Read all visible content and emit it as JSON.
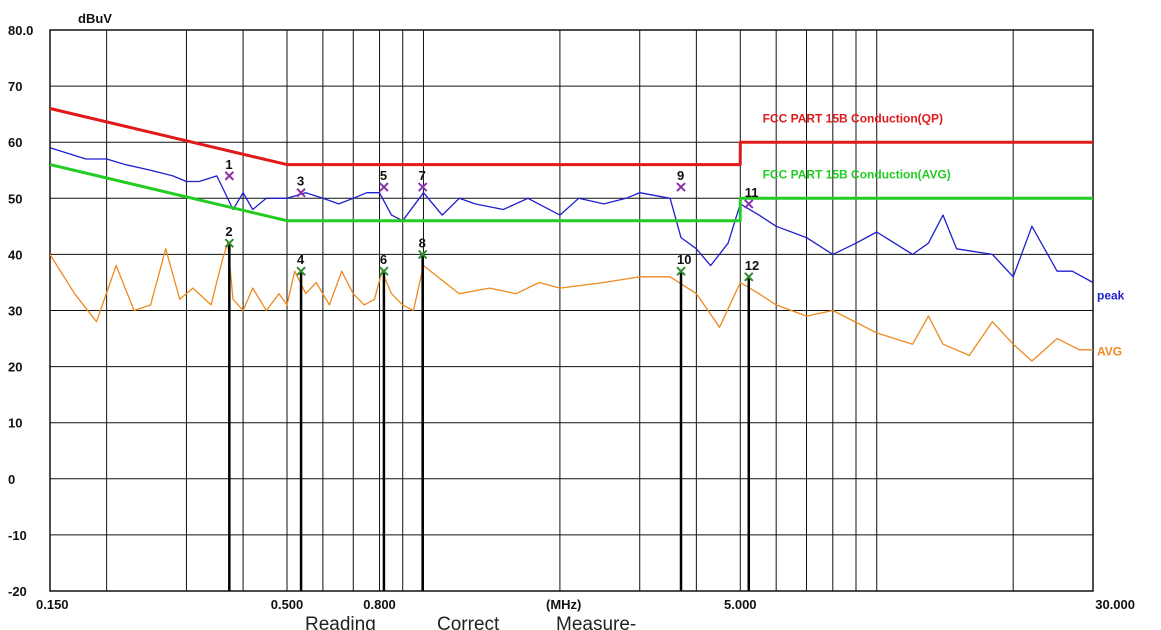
{
  "chart_data": {
    "type": "line",
    "y_unit": "dBuV",
    "x_unit": "(MHz)",
    "x_scale": "log",
    "xlim": [
      0.15,
      30
    ],
    "ylim": [
      -20,
      80
    ],
    "y_ticks": [
      "80.0",
      "70",
      "60",
      "50",
      "40",
      "30",
      "20",
      "10",
      "0",
      "-10",
      "-20"
    ],
    "x_ticks": [
      "0.150",
      "0.500",
      "0.800",
      "5.000",
      "30.000"
    ],
    "grid": true,
    "series": [
      {
        "name": "peak",
        "color": "#1f1fd0",
        "x": [
          0.15,
          0.18,
          0.2,
          0.22,
          0.25,
          0.28,
          0.3,
          0.32,
          0.35,
          0.36,
          0.38,
          0.4,
          0.42,
          0.45,
          0.48,
          0.5,
          0.55,
          0.6,
          0.65,
          0.7,
          0.75,
          0.8,
          0.85,
          0.9,
          1.0,
          1.1,
          1.2,
          1.3,
          1.5,
          1.7,
          2.0,
          2.2,
          2.5,
          2.8,
          3.0,
          3.5,
          3.7,
          4.0,
          4.3,
          4.7,
          5.0,
          5.5,
          6.0,
          7.0,
          8.0,
          9.0,
          10.0,
          12.0,
          13.0,
          14.0,
          15.0,
          18.0,
          20.0,
          22.0,
          25.0,
          27.0,
          30.0
        ],
        "y": [
          59,
          57,
          57,
          56,
          55,
          54,
          53,
          53,
          54,
          52,
          48,
          51,
          48,
          50,
          50,
          50,
          51,
          50,
          49,
          50,
          51,
          51,
          47,
          46,
          51,
          47,
          50,
          49,
          48,
          50,
          47,
          50,
          49,
          50,
          51,
          50,
          43,
          41,
          38,
          42,
          49,
          47,
          45,
          43,
          40,
          42,
          44,
          40,
          42,
          47,
          41,
          40,
          36,
          45,
          37,
          37,
          35
        ]
      },
      {
        "name": "AVG",
        "color": "#ee8a1f",
        "x": [
          0.15,
          0.17,
          0.19,
          0.21,
          0.23,
          0.25,
          0.27,
          0.29,
          0.31,
          0.34,
          0.36,
          0.37,
          0.38,
          0.4,
          0.42,
          0.45,
          0.48,
          0.5,
          0.52,
          0.55,
          0.58,
          0.62,
          0.66,
          0.7,
          0.74,
          0.78,
          0.81,
          0.85,
          0.9,
          0.95,
          1.0,
          1.2,
          1.4,
          1.6,
          1.8,
          2.0,
          2.5,
          3.0,
          3.5,
          4.0,
          4.5,
          5.0,
          5.5,
          6.0,
          7.0,
          8.0,
          10.0,
          12.0,
          13.0,
          14.0,
          16.0,
          18.0,
          20.0,
          22.0,
          25.0,
          28.0,
          30.0
        ],
        "y": [
          40,
          33,
          28,
          38,
          30,
          31,
          41,
          32,
          34,
          31,
          39,
          42,
          32,
          30,
          34,
          30,
          33,
          31,
          37,
          33,
          35,
          31,
          37,
          33,
          31,
          32,
          37,
          33,
          31,
          30,
          38,
          33,
          34,
          33,
          35,
          34,
          35,
          36,
          36,
          33,
          27,
          35,
          33,
          31,
          29,
          30,
          26,
          24,
          29,
          24,
          22,
          28,
          24,
          21,
          25,
          23,
          23
        ]
      },
      {
        "name": "FCC PART 15B Conduction(QP)",
        "color": "#e01a1a",
        "x": [
          0.15,
          0.5,
          4.999,
          5.0,
          30.0
        ],
        "y": [
          66,
          56,
          56,
          60,
          60
        ]
      },
      {
        "name": "FCC PART 15B Conduction(AVG)",
        "color": "#22cc22",
        "x": [
          0.15,
          0.5,
          4.999,
          5.0,
          30.0
        ],
        "y": [
          56,
          46,
          46,
          50,
          50
        ]
      }
    ],
    "markers": [
      {
        "label": "1",
        "x": 0.373,
        "y": 54,
        "series": "peak"
      },
      {
        "label": "2",
        "x": 0.373,
        "y": 42,
        "series": "AVG"
      },
      {
        "label": "3",
        "x": 0.537,
        "y": 51,
        "series": "peak"
      },
      {
        "label": "4",
        "x": 0.537,
        "y": 37,
        "series": "AVG"
      },
      {
        "label": "5",
        "x": 0.818,
        "y": 52,
        "series": "peak"
      },
      {
        "label": "6",
        "x": 0.818,
        "y": 37,
        "series": "AVG"
      },
      {
        "label": "7",
        "x": 0.996,
        "y": 52,
        "series": "peak"
      },
      {
        "label": "8",
        "x": 0.996,
        "y": 40,
        "series": "AVG"
      },
      {
        "label": "9",
        "x": 3.7,
        "y": 52,
        "series": "peak"
      },
      {
        "label": "10",
        "x": 3.7,
        "y": 37,
        "series": "AVG"
      },
      {
        "label": "11",
        "x": 5.22,
        "y": 49,
        "series": "peak"
      },
      {
        "label": "12",
        "x": 5.22,
        "y": 36,
        "series": "AVG"
      }
    ]
  },
  "bottom_headers": [
    "Reading",
    "Correct",
    "Measure-"
  ]
}
